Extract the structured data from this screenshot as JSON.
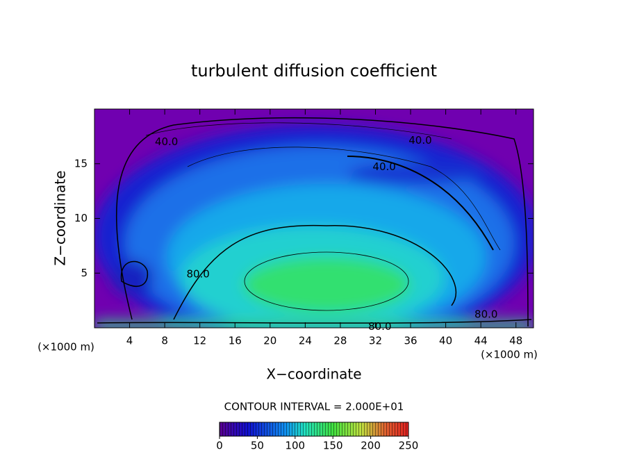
{
  "chart_data": {
    "type": "contour",
    "title": "turbulent diffusion coefficient",
    "x_label": "X−coordinate",
    "y_label": "Z−coordinate",
    "x_unit_labels": [
      "(×1000 m)",
      "(×1000 m)"
    ],
    "xlim": [
      0,
      50
    ],
    "xticks": [
      4,
      8,
      12,
      16,
      20,
      24,
      28,
      32,
      36,
      40,
      44,
      48
    ],
    "ylim": [
      0,
      20
    ],
    "yticks": [
      5,
      10,
      15
    ],
    "contour_labels": [
      {
        "value": 40,
        "label": "40.0",
        "x": 8.2,
        "y": 17.0
      },
      {
        "value": 40,
        "label": "40.0",
        "x": 37.1,
        "y": 17.1
      },
      {
        "value": 40,
        "label": "40.0",
        "x": 33.0,
        "y": 14.7
      },
      {
        "value": 80,
        "label": "80.0",
        "x": 11.8,
        "y": 4.9
      },
      {
        "value": 80,
        "label": "80.0",
        "x": 44.6,
        "y": 1.2
      },
      {
        "value": 80,
        "label": "80.0",
        "x": 32.5,
        "y": 0.1
      }
    ],
    "contour_interval_text": "CONTOUR INTERVAL = 2.000E+01",
    "colorbar_lim": [
      0,
      250
    ],
    "colorbar_ticks": [
      0,
      50,
      100,
      150,
      200,
      250
    ]
  }
}
